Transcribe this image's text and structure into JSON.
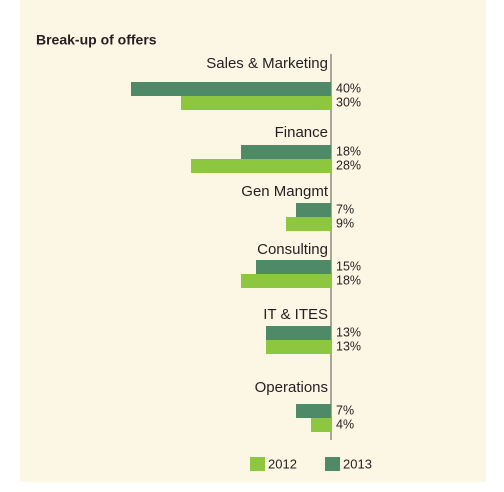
{
  "chart_data": {
    "type": "bar",
    "orientation": "horizontal",
    "title": "Break-up of offers",
    "categories": [
      "Sales & Marketing",
      "Finance",
      "Gen Mangmt",
      "Consulting",
      "IT & ITES",
      "Operations"
    ],
    "series": [
      {
        "name": "2013",
        "color": "#4f8a68",
        "values": [
          40,
          18,
          7,
          15,
          13,
          7
        ],
        "value_labels": [
          "40%",
          "18%",
          "7%",
          "15%",
          "13%",
          "7%"
        ]
      },
      {
        "name": "2012",
        "color": "#8dc63f",
        "values": [
          30,
          28,
          9,
          18,
          13,
          4
        ],
        "value_labels": [
          "30%",
          "28%",
          "9%",
          "18%",
          "13%",
          "4%"
        ]
      }
    ]
  }
}
